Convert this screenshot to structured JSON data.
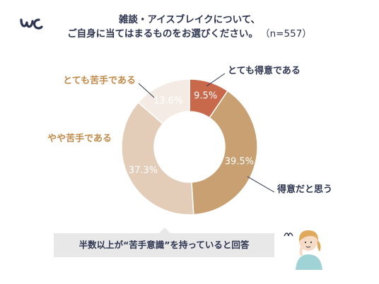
{
  "header": {
    "title_line1": "雑談・アイスブレイクについて、",
    "title_line2": "ご自身に当てはまるものをお選びください。",
    "sample_size": "（n=557）"
  },
  "chart_data": {
    "type": "pie",
    "style": "donut",
    "slices": [
      {
        "label": "とても得意である",
        "value": 9.5,
        "display": "9.5%",
        "color": "#c8694b"
      },
      {
        "label": "得意だと思う",
        "value": 39.5,
        "display": "39.5%",
        "color": "#c9a071"
      },
      {
        "label": "やや苦手である",
        "value": 37.3,
        "display": "37.3%",
        "color": "#e3cdb9"
      },
      {
        "label": "とても苦手である",
        "value": 13.6,
        "display": "13.6%",
        "color": "#f4ece4"
      }
    ],
    "label_colors": {
      "positive": "#2e3550",
      "negative": "#c08a4a"
    }
  },
  "callout": {
    "text": "半数以上が“苦手意識”を持っていると回答"
  }
}
